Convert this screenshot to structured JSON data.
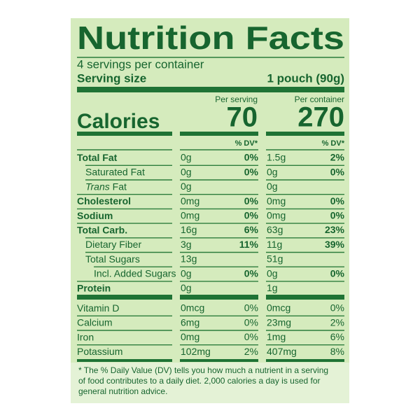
{
  "header": {
    "title": "Nutrition Facts",
    "servings": "4 servings per container",
    "serving_size_label": "Serving size",
    "serving_size_value": "1 pouch (90g)"
  },
  "columns": [
    "Per serving",
    "Per container"
  ],
  "calories": {
    "label": "Calories",
    "values": [
      "70",
      "270"
    ]
  },
  "dv_header": [
    "% DV*",
    "% DV*"
  ],
  "nutrients": [
    {
      "label": "Total Fat",
      "serving": "0g",
      "serving_dv": "0%",
      "container": "1.5g",
      "container_dv": "2%"
    },
    {
      "label": "Saturated Fat",
      "serving": "0g",
      "serving_dv": "0%",
      "container": "0g",
      "container_dv": "0%"
    },
    {
      "label_italic": "Trans",
      "label": "Fat",
      "serving": "0g",
      "container": "0g"
    },
    {
      "label": "Cholesterol",
      "serving": "0mg",
      "serving_dv": "0%",
      "container": "0mg",
      "container_dv": "0%"
    },
    {
      "label": "Sodium",
      "serving": "0mg",
      "serving_dv": "0%",
      "container": "0mg",
      "container_dv": "0%"
    },
    {
      "label": "Total Carb.",
      "serving": "16g",
      "serving_dv": "6%",
      "container": "63g",
      "container_dv": "23%"
    },
    {
      "label": "Dietary Fiber",
      "serving": "3g",
      "serving_dv": "11%",
      "container": "11g",
      "container_dv": "39%"
    },
    {
      "label": "Total Sugars",
      "serving": "13g",
      "container": "51g"
    },
    {
      "label": "Incl. Added Sugars",
      "serving": "0g",
      "serving_dv": "0%",
      "container": "0g",
      "container_dv": "0%"
    },
    {
      "label": "Protein",
      "serving": "0g",
      "container": "1g"
    }
  ],
  "vitamins": [
    {
      "label": "Vitamin D",
      "serving": "0mcg",
      "serving_dv": "0%",
      "container": "0mcg",
      "container_dv": "0%"
    },
    {
      "label": "Calcium",
      "serving": "6mg",
      "serving_dv": "0%",
      "container": "23mg",
      "container_dv": "2%"
    },
    {
      "label": "Iron",
      "serving": "0mg",
      "serving_dv": "0%",
      "container": "1mg",
      "container_dv": "6%"
    },
    {
      "label": "Potassium",
      "serving": "102mg",
      "serving_dv": "2%",
      "container": "407mg",
      "container_dv": "8%"
    }
  ],
  "footnote": [
    "* The % Daily Value (DV) tells you how much a nutrient in a serving",
    "of food contributes to a daily diet. 2,000 calories a day is used for",
    "general nutrition advice."
  ]
}
